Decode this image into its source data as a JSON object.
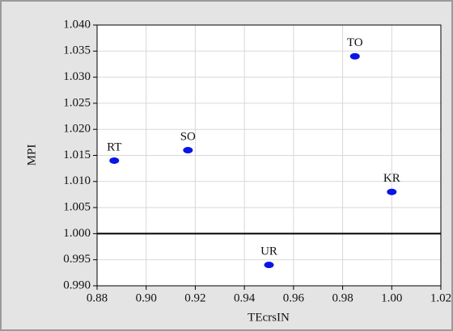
{
  "chart_data": {
    "type": "scatter",
    "x_label": "TEcrsIN",
    "y_label": "MPI",
    "labels": [
      "RT",
      "SO",
      "TO",
      "UR",
      "KR"
    ],
    "x": [
      0.887,
      0.917,
      0.985,
      0.95,
      1.0
    ],
    "y": [
      1.014,
      1.016,
      1.034,
      0.994,
      1.008
    ],
    "color": "#0a14e6",
    "xlim": [
      0.88,
      1.02
    ],
    "xticks": [
      0.88,
      {
        "value": 0.9,
        "label": "0.90"
      },
      0.92,
      0.94,
      0.96,
      0.98,
      {
        "value": 1,
        "label": "1.00"
      },
      1.02
    ],
    "ylim": [
      0.99,
      1.04
    ],
    "yticks": [
      {
        "value": 0.99,
        "label": "0.990"
      },
      0.995,
      {
        "value": 1,
        "label": "1.000"
      },
      1.005,
      {
        "value": 1.01,
        "label": "1.010"
      },
      1.015,
      {
        "value": 1.02,
        "label": "1.020"
      },
      1.025,
      {
        "value": 1.03,
        "label": "1.030"
      },
      1.035,
      {
        "value": 1.04,
        "label": "1.040"
      }
    ],
    "reference_line": 1,
    "grid": true
  }
}
